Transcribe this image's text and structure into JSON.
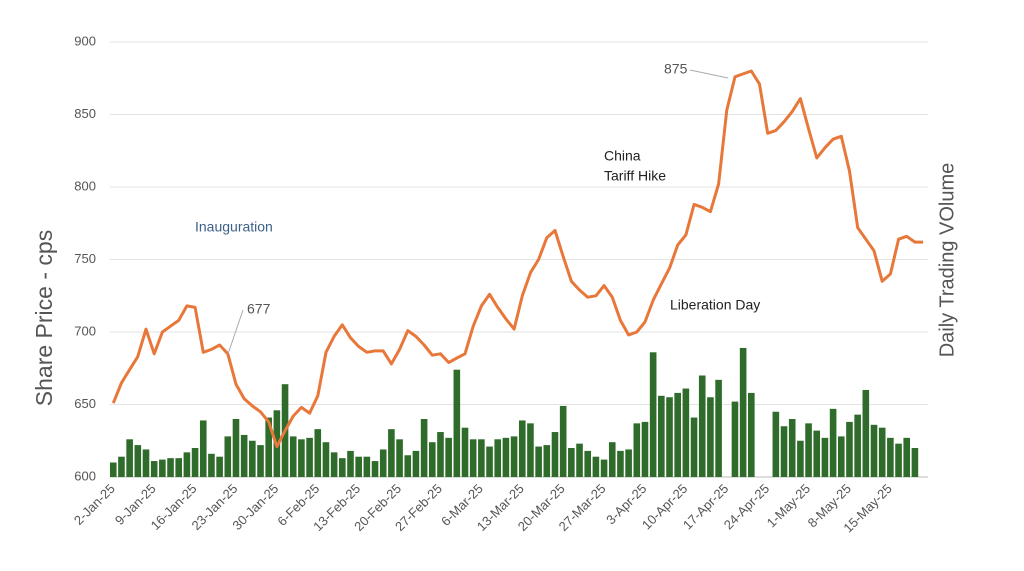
{
  "chart_data": {
    "type": "line-bar",
    "y_label": "Share Price - cps",
    "y2_label": "Daily Trading VOlume",
    "categories": [
      "2-Jan-25",
      null,
      null,
      null,
      null,
      "9-Jan-25",
      null,
      null,
      null,
      null,
      "16-Jan-25",
      null,
      null,
      null,
      null,
      "23-Jan-25",
      null,
      null,
      null,
      null,
      "30-Jan-25",
      null,
      null,
      null,
      null,
      "6-Feb-25",
      null,
      null,
      null,
      null,
      "13-Feb-25",
      null,
      null,
      null,
      null,
      "20-Feb-25",
      null,
      null,
      null,
      null,
      "27-Feb-25",
      null,
      null,
      null,
      null,
      "6-Mar-25",
      null,
      null,
      null,
      null,
      "13-Mar-25",
      null,
      null,
      null,
      null,
      "20-Mar-25",
      null,
      null,
      null,
      null,
      "27-Mar-25",
      null,
      null,
      null,
      null,
      "3-Apr-25",
      null,
      null,
      null,
      null,
      "10-Apr-25",
      null,
      null,
      null,
      null,
      "17-Apr-25",
      null,
      null,
      null,
      null,
      "24-Apr-25",
      null,
      null,
      null,
      null,
      "1-May-25",
      null,
      null,
      null,
      null,
      "8-May-25",
      null,
      null,
      null,
      null,
      "15-May-25",
      null,
      null,
      null,
      null
    ],
    "series": [
      {
        "name": "Share Price",
        "color": "#e8773a",
        "values": [
          651,
          665,
          674,
          683,
          702,
          685,
          700,
          704,
          708,
          718,
          717,
          686,
          688,
          691,
          685,
          664,
          654,
          649,
          645,
          638,
          621,
          632,
          642,
          648,
          644,
          656,
          686,
          697,
          705,
          696,
          690,
          686,
          687,
          687,
          678,
          688,
          701,
          697,
          691,
          684,
          685,
          679,
          682,
          685,
          704,
          718,
          726,
          717,
          709,
          702,
          725,
          741,
          750,
          765,
          770,
          752,
          735,
          729,
          724,
          725,
          732,
          724,
          708,
          698,
          700,
          707,
          722,
          733,
          744,
          760,
          767,
          788,
          786,
          783,
          802,
          853,
          876,
          878,
          880,
          871,
          837,
          839,
          845,
          852,
          861,
          840,
          820,
          827,
          833,
          835,
          811,
          772,
          764,
          756,
          735,
          740,
          764,
          766,
          762,
          762
        ]
      },
      {
        "name": "Daily Trading Volume",
        "color": "#2f6b2a",
        "axis": "y2",
        "values": [
          10,
          14,
          26,
          22,
          19,
          11,
          12,
          13,
          13,
          17,
          20,
          39,
          16,
          14,
          28,
          40,
          29,
          25,
          22,
          41,
          46,
          64,
          28,
          26,
          27,
          33,
          24,
          17,
          13,
          18,
          14,
          14,
          11,
          19,
          33,
          26,
          15,
          18,
          40,
          24,
          31,
          27,
          74,
          34,
          26,
          26,
          21,
          26,
          27,
          28,
          39,
          37,
          21,
          22,
          31,
          49,
          20,
          23,
          18,
          14,
          12,
          24,
          18,
          19,
          37,
          38,
          86,
          56,
          55,
          58,
          61,
          41,
          70,
          55,
          67,
          null,
          52,
          89,
          58,
          null,
          null,
          45,
          35,
          40,
          25,
          37,
          32,
          27,
          47,
          28,
          38,
          43,
          60,
          36,
          34,
          27,
          23,
          27,
          20,
          null
        ]
      }
    ],
    "ylim": [
      600,
      900
    ],
    "yticks": [
      600,
      650,
      700,
      750,
      800,
      850,
      900
    ],
    "y2lim": [
      0,
      300
    ],
    "grid": true,
    "annotations": [
      {
        "lines": [
          "875"
        ]
      },
      {
        "lines": [
          "677"
        ]
      },
      {
        "lines": [
          "Inauguration"
        ]
      },
      {
        "lines": [
          "China",
          "Tariff Hike"
        ]
      },
      {
        "lines": [
          "Liberation Day"
        ]
      }
    ]
  }
}
